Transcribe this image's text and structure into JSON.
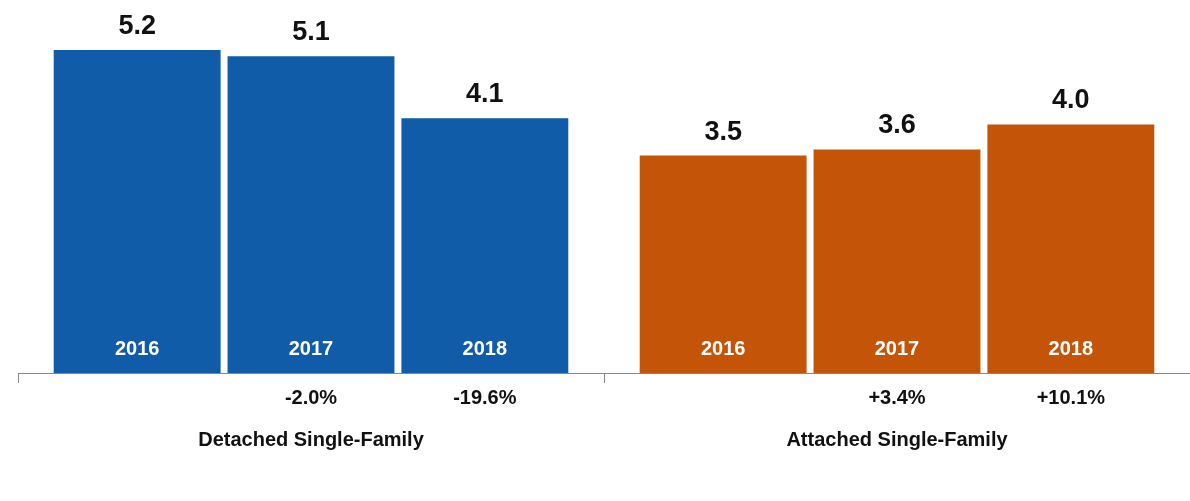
{
  "chart_data": {
    "type": "bar",
    "categories": [
      "Detached Single-Family",
      "Attached Single-Family"
    ],
    "series": [
      {
        "name": "2016",
        "colors": [
          "#115ca8",
          "#c45508"
        ],
        "values": [
          5.2,
          3.5
        ],
        "value_labels": [
          "5.2",
          "3.5"
        ]
      },
      {
        "name": "2017",
        "colors": [
          "#115ca8",
          "#c45508"
        ],
        "values": [
          5.1,
          3.6
        ],
        "value_labels": [
          "5.1",
          "3.6"
        ]
      },
      {
        "name": "2018",
        "colors": [
          "#115ca8",
          "#c45508"
        ],
        "values": [
          4.1,
          4.0
        ],
        "value_labels": [
          "4.1",
          "4.0"
        ]
      }
    ],
    "ylim": [
      0,
      5.2
    ],
    "tick_labels": "x",
    "annotations": [
      "-2.0%",
      "-19.6%",
      "+3.4%",
      "+10.1%"
    ]
  }
}
